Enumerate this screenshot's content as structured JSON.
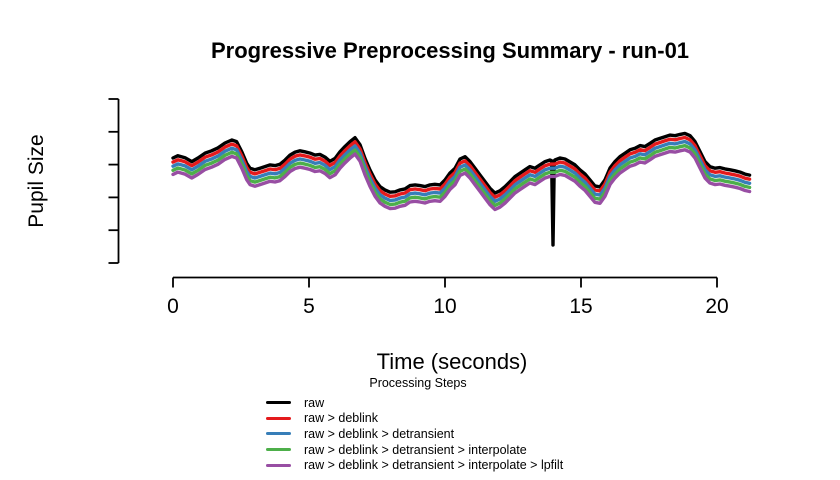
{
  "chart_data": {
    "type": "line",
    "title": "Progressive Preprocessing Summary - run-01",
    "xlabel": "Time (seconds)",
    "ylabel": "Pupil Size",
    "legend_title": "Processing Steps",
    "legend_position": "bottom",
    "grid": false,
    "x_ticks": [
      0,
      5,
      10,
      15,
      20
    ],
    "xlim": [
      0,
      21.3
    ],
    "ylim": [
      0,
      5
    ],
    "y_ticks_count": 6,
    "y_ticks_labeled": false,
    "x": [
      0,
      0.18,
      0.44,
      0.69,
      0.92,
      1.18,
      1.42,
      1.65,
      1.91,
      2.16,
      2.34,
      2.53,
      2.71,
      2.83,
      3.01,
      3.2,
      3.38,
      3.57,
      3.75,
      3.93,
      4.12,
      4.3,
      4.49,
      4.67,
      4.85,
      5.04,
      5.22,
      5.4,
      5.59,
      5.77,
      5.96,
      6.14,
      6.32,
      6.51,
      6.69,
      6.88,
      7.06,
      7.24,
      7.43,
      7.61,
      7.79,
      7.98,
      8.16,
      8.35,
      8.53,
      8.71,
      8.9,
      9.08,
      9.26,
      9.45,
      9.63,
      9.82,
      10.0,
      10.18,
      10.37,
      10.55,
      10.74,
      10.92,
      11.1,
      11.29,
      11.47,
      11.65,
      11.84,
      12.02,
      12.21,
      12.39,
      12.57,
      12.76,
      12.94,
      13.12,
      13.31,
      13.49,
      13.68,
      13.86,
      14.04,
      14.23,
      14.41,
      14.6,
      14.78,
      14.96,
      15.15,
      15.33,
      15.51,
      15.7,
      15.88,
      16.07,
      16.25,
      16.43,
      16.62,
      16.8,
      16.99,
      17.17,
      17.35,
      17.54,
      17.72,
      17.9,
      18.09,
      18.27,
      18.46,
      18.64,
      18.82,
      19.01,
      19.19,
      19.38,
      19.56,
      19.74,
      19.93,
      20.11,
      20.29,
      20.48,
      20.66,
      20.85,
      21.03,
      21.2
    ],
    "values": [
      3.2,
      3.27,
      3.21,
      3.09,
      3.2,
      3.35,
      3.42,
      3.51,
      3.66,
      3.75,
      3.7,
      3.39,
      3.04,
      2.89,
      2.84,
      2.89,
      2.94,
      2.99,
      2.97,
      3.01,
      3.14,
      3.29,
      3.38,
      3.42,
      3.39,
      3.35,
      3.29,
      3.31,
      3.23,
      3.1,
      3.19,
      3.39,
      3.55,
      3.7,
      3.82,
      3.6,
      3.19,
      2.84,
      2.53,
      2.33,
      2.23,
      2.16,
      2.17,
      2.23,
      2.26,
      2.36,
      2.38,
      2.36,
      2.33,
      2.38,
      2.4,
      2.38,
      2.53,
      2.74,
      2.89,
      3.17,
      3.24,
      3.09,
      2.89,
      2.68,
      2.48,
      2.28,
      2.13,
      2.2,
      2.33,
      2.48,
      2.63,
      2.74,
      2.84,
      2.94,
      2.89,
      2.99,
      3.09,
      3.14,
      3.14,
      3.2,
      3.17,
      3.08,
      2.99,
      2.84,
      2.71,
      2.53,
      2.35,
      2.32,
      2.53,
      2.9,
      3.09,
      3.24,
      3.35,
      3.45,
      3.5,
      3.58,
      3.55,
      3.65,
      3.75,
      3.8,
      3.85,
      3.9,
      3.88,
      3.92,
      3.95,
      3.88,
      3.7,
      3.39,
      3.09,
      2.94,
      2.89,
      2.91,
      2.87,
      2.84,
      2.81,
      2.77,
      2.71,
      2.68
    ],
    "blink_spike": {
      "t": [
        13.92,
        13.97,
        14.02
      ],
      "values": [
        3.12,
        0.55,
        3.12
      ]
    },
    "series": [
      {
        "name": "raw",
        "color": "#000000",
        "offset": 0,
        "has_spike": true
      },
      {
        "name": "raw > deblink",
        "color": "#E41A1C",
        "offset": -0.125
      },
      {
        "name": "raw > deblink > detransient",
        "color": "#377EB8",
        "offset": -0.25
      },
      {
        "name": "raw > deblink > detransient > interpolate",
        "color": "#4DAF4A",
        "offset": -0.375
      },
      {
        "name": "raw > deblink > detransient > interpolate > lpfilt",
        "color": "#984EA3",
        "offset": -0.5
      }
    ]
  }
}
